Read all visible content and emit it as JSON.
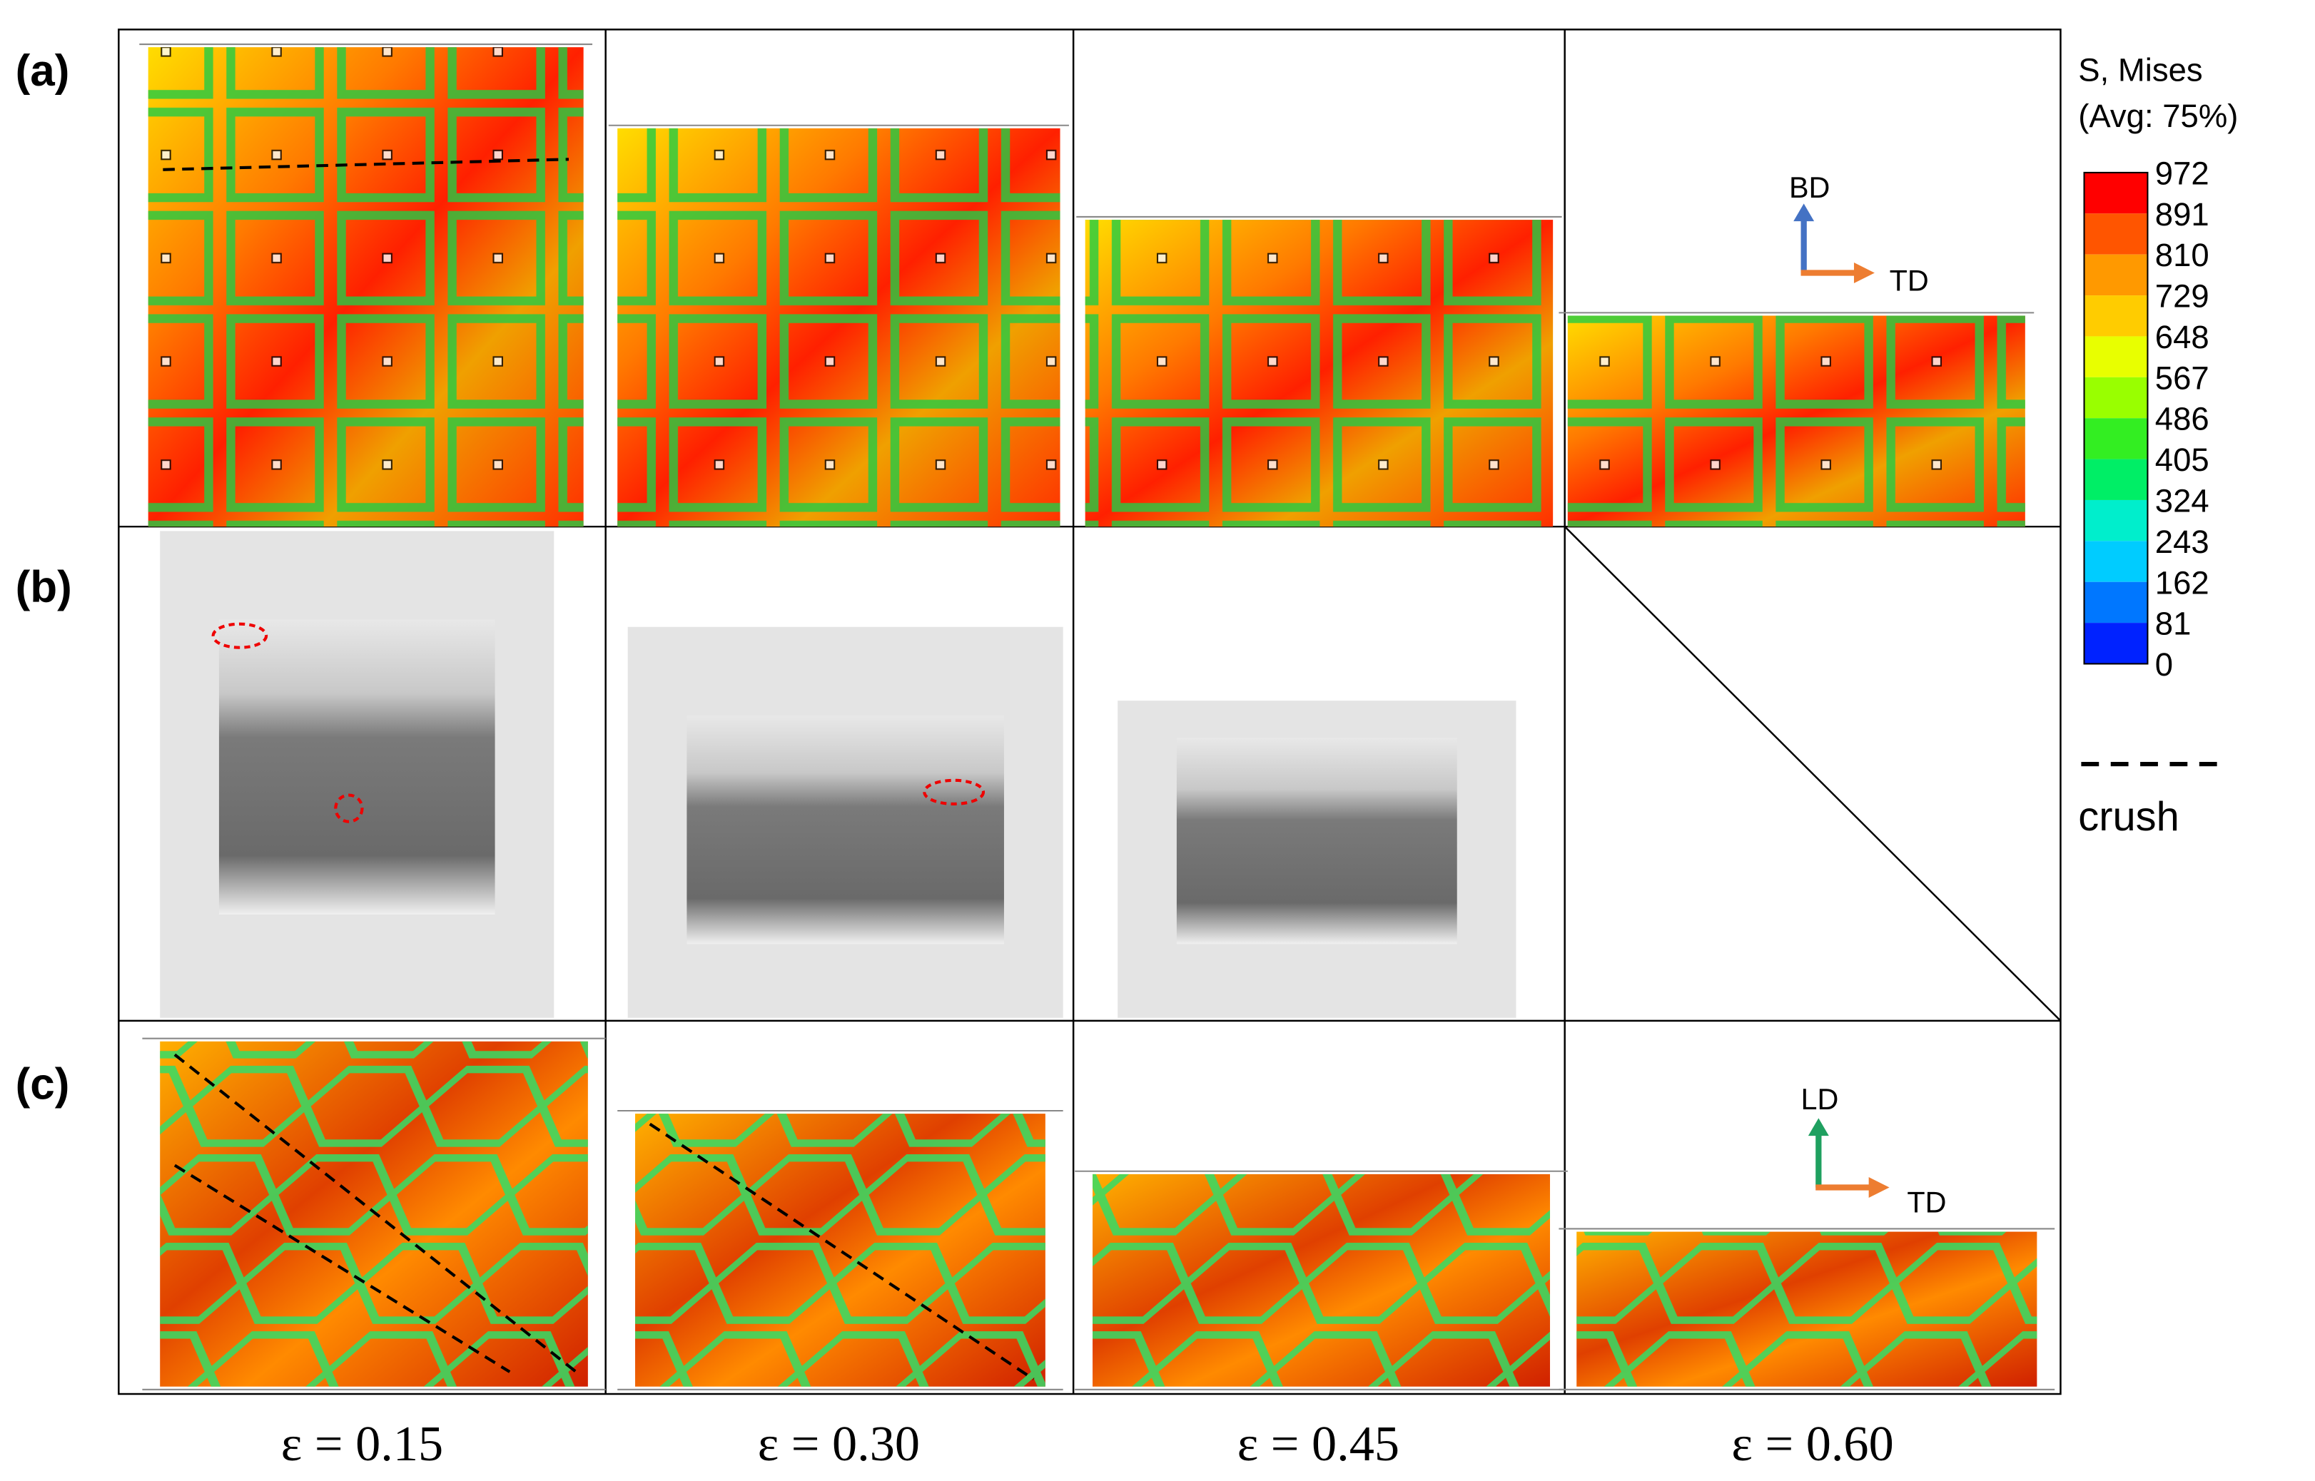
{
  "panel_labels": [
    "(a)",
    "(b)",
    "(c)"
  ],
  "strain_labels": [
    "ε = 0.15",
    "ε = 0.30",
    "ε = 0.45",
    "ε = 0.60"
  ],
  "legend": {
    "title": "S, Mises",
    "subtitle": "(Avg: 75%)",
    "values": [
      972,
      891,
      810,
      729,
      648,
      567,
      486,
      405,
      324,
      243,
      162,
      81,
      0
    ]
  },
  "axes_a": {
    "vertical": "BD",
    "horizontal": "TD"
  },
  "axes_c": {
    "vertical": "LD",
    "horizontal": "TD"
  },
  "crush_label": "crush"
}
